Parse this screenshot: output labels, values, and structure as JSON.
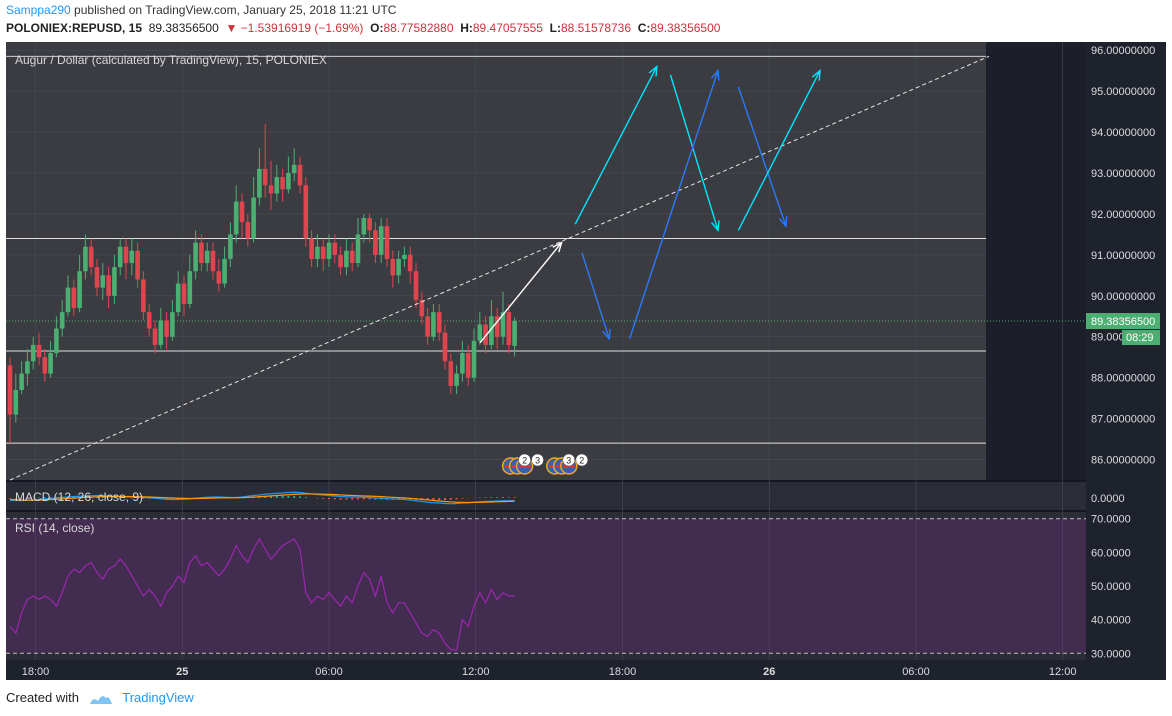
{
  "header": {
    "user": "Samppa290",
    "published_text": " published on TradingView.com, January 25, 2018 11:21 UTC",
    "symbol": "POLONIEX:REPUSD, 15",
    "last": "89.38356500",
    "change": "▼ −1.53916919 (−1.69%)",
    "o_label": "O:",
    "o_value": "88.77582880",
    "h_label": "H:",
    "h_value": "89.47057555",
    "l_label": "L:",
    "l_value": "88.51578736",
    "c_label": "C:",
    "c_value": "89.38356500"
  },
  "footer": {
    "created_with": "Created with",
    "brand": "TradingView"
  },
  "chart_data": {
    "type": "candlestick",
    "title": "Augur / Dollar (calculated by TradingView), 15, POLONIEX",
    "price_axis": {
      "ylim": [
        85.5,
        96.2
      ],
      "ticks": [
        "86.00000000",
        "87.00000000",
        "88.00000000",
        "89.00000000",
        "90.00000000",
        "91.00000000",
        "92.00000000",
        "93.00000000",
        "94.00000000",
        "95.00000000",
        "96.00000000"
      ],
      "last_price_label": "89.38356500",
      "countdown_label": "08:29"
    },
    "time_axis": {
      "ticks": [
        {
          "label": "18:00",
          "bold": false
        },
        {
          "label": "25",
          "bold": true
        },
        {
          "label": "06:00",
          "bold": false
        },
        {
          "label": "12:00",
          "bold": false
        },
        {
          "label": "18:00",
          "bold": false
        },
        {
          "label": "26",
          "bold": true
        },
        {
          "label": "06:00",
          "bold": false
        },
        {
          "label": "12:00",
          "bold": false
        }
      ]
    },
    "levels": [
      91.4,
      88.65,
      86.4
    ],
    "trendline": {
      "from": [
        0,
        85.5
      ],
      "to": [
        130,
        95.85
      ]
    },
    "projection_arrows": [
      {
        "color": "#ffffff",
        "from": [
          62,
          88.85
        ],
        "to": [
          74,
          91.3
        ]
      },
      {
        "color": "#00e5ff",
        "from": [
          76,
          91.75
        ],
        "to": [
          88,
          95.6
        ]
      },
      {
        "color": "#2979ff",
        "from": [
          77,
          91.05
        ],
        "to": [
          81,
          88.95
        ]
      },
      {
        "color": "#00e5ff",
        "from": [
          90,
          95.4
        ],
        "to": [
          97,
          91.6
        ]
      },
      {
        "color": "#2979ff",
        "from": [
          84,
          88.95
        ],
        "to": [
          97,
          95.5
        ]
      },
      {
        "color": "#2979ff",
        "from": [
          100,
          95.1
        ],
        "to": [
          107,
          91.7
        ]
      },
      {
        "color": "#00e5ff",
        "from": [
          100,
          91.6
        ],
        "to": [
          112,
          95.5
        ]
      }
    ],
    "event_markers": [
      {
        "bar": 66.5,
        "count": "2",
        "n": "3"
      },
      {
        "bar": 73,
        "count": "3",
        "n": "2"
      }
    ],
    "candles": [
      [
        88.3,
        87.1,
        88.5,
        86.4
      ],
      [
        87.1,
        87.7,
        88.1,
        86.9
      ],
      [
        87.7,
        88.1,
        88.4,
        87.6
      ],
      [
        88.1,
        88.4,
        88.7,
        87.8
      ],
      [
        88.4,
        88.8,
        89.0,
        88.2
      ],
      [
        88.8,
        88.5,
        89.1,
        88.3
      ],
      [
        88.5,
        88.1,
        88.7,
        87.9
      ],
      [
        88.1,
        88.6,
        88.9,
        88.0
      ],
      [
        88.6,
        89.2,
        89.5,
        88.5
      ],
      [
        89.2,
        89.6,
        89.9,
        89.0
      ],
      [
        89.6,
        90.2,
        90.5,
        89.5
      ],
      [
        90.2,
        89.7,
        90.4,
        89.5
      ],
      [
        89.7,
        90.6,
        91.0,
        89.6
      ],
      [
        90.6,
        91.2,
        91.5,
        90.4
      ],
      [
        91.2,
        90.7,
        91.4,
        90.5
      ],
      [
        90.7,
        90.2,
        90.9,
        90.0
      ],
      [
        90.2,
        90.5,
        90.8,
        89.9
      ],
      [
        90.5,
        90.0,
        90.7,
        89.7
      ],
      [
        90.0,
        90.7,
        91.0,
        89.8
      ],
      [
        90.7,
        91.2,
        91.4,
        90.5
      ],
      [
        91.2,
        90.8,
        91.4,
        90.4
      ],
      [
        90.8,
        91.1,
        91.4,
        90.5
      ],
      [
        91.1,
        90.4,
        91.3,
        90.2
      ],
      [
        90.4,
        89.6,
        90.6,
        89.4
      ],
      [
        89.6,
        89.2,
        89.8,
        89.0
      ],
      [
        89.2,
        88.8,
        89.4,
        88.6
      ],
      [
        88.8,
        89.4,
        89.7,
        88.7
      ],
      [
        89.4,
        89.0,
        89.6,
        88.7
      ],
      [
        89.0,
        89.6,
        89.9,
        88.9
      ],
      [
        89.6,
        90.3,
        90.6,
        89.5
      ],
      [
        90.3,
        89.8,
        90.5,
        89.5
      ],
      [
        89.8,
        90.6,
        91.0,
        89.7
      ],
      [
        90.6,
        91.3,
        91.6,
        90.4
      ],
      [
        91.3,
        90.8,
        91.5,
        90.6
      ],
      [
        90.8,
        91.1,
        91.3,
        90.6
      ],
      [
        91.1,
        90.6,
        91.3,
        90.4
      ],
      [
        90.6,
        90.3,
        90.9,
        90.1
      ],
      [
        90.3,
        90.9,
        91.2,
        90.2
      ],
      [
        90.9,
        91.5,
        91.8,
        90.7
      ],
      [
        91.5,
        92.3,
        92.7,
        91.3
      ],
      [
        92.3,
        91.8,
        92.5,
        91.4
      ],
      [
        91.8,
        91.4,
        92.0,
        91.2
      ],
      [
        91.4,
        92.4,
        92.9,
        91.3
      ],
      [
        92.4,
        93.1,
        93.6,
        92.2
      ],
      [
        93.1,
        92.7,
        94.2,
        92.4
      ],
      [
        92.7,
        92.5,
        93.3,
        92.1
      ],
      [
        92.5,
        92.9,
        93.2,
        92.3
      ],
      [
        92.9,
        92.6,
        93.1,
        92.3
      ],
      [
        92.6,
        93.0,
        93.4,
        92.5
      ],
      [
        93.0,
        93.2,
        93.6,
        92.8
      ],
      [
        93.2,
        92.7,
        93.4,
        92.5
      ],
      [
        92.7,
        91.4,
        92.9,
        91.2
      ],
      [
        91.4,
        90.9,
        91.6,
        90.7
      ],
      [
        90.9,
        91.2,
        91.5,
        90.7
      ],
      [
        91.2,
        90.9,
        91.4,
        90.6
      ],
      [
        90.9,
        91.3,
        91.5,
        90.7
      ],
      [
        91.3,
        91.0,
        91.5,
        90.8
      ],
      [
        91.0,
        90.7,
        91.2,
        90.5
      ],
      [
        90.7,
        91.1,
        91.4,
        90.5
      ],
      [
        91.1,
        90.8,
        91.3,
        90.6
      ],
      [
        90.8,
        91.5,
        91.9,
        90.7
      ],
      [
        91.5,
        91.9,
        92.0,
        91.3
      ],
      [
        91.9,
        91.6,
        92.0,
        91.3
      ],
      [
        91.6,
        91.0,
        91.8,
        90.8
      ],
      [
        91.0,
        91.7,
        91.9,
        90.8
      ],
      [
        91.7,
        90.9,
        91.9,
        90.7
      ],
      [
        90.9,
        90.5,
        91.1,
        90.2
      ],
      [
        90.5,
        90.9,
        91.1,
        90.3
      ],
      [
        90.9,
        91.0,
        91.2,
        90.7
      ],
      [
        91.0,
        90.6,
        91.2,
        90.3
      ],
      [
        90.6,
        89.9,
        90.8,
        89.7
      ],
      [
        89.9,
        89.5,
        90.1,
        89.3
      ],
      [
        89.5,
        89.0,
        89.7,
        88.8
      ],
      [
        89.0,
        89.6,
        89.8,
        88.9
      ],
      [
        89.6,
        89.1,
        89.8,
        88.9
      ],
      [
        89.1,
        88.4,
        89.3,
        88.2
      ],
      [
        88.4,
        87.8,
        88.6,
        87.6
      ],
      [
        87.8,
        88.1,
        88.3,
        87.6
      ],
      [
        88.1,
        88.6,
        88.9,
        87.9
      ],
      [
        88.6,
        88.0,
        88.8,
        87.8
      ],
      [
        88.0,
        88.9,
        89.2,
        87.9
      ],
      [
        88.9,
        89.3,
        89.6,
        88.8
      ],
      [
        89.3,
        88.8,
        89.5,
        88.6
      ],
      [
        88.8,
        89.5,
        89.9,
        88.7
      ],
      [
        89.5,
        89.0,
        89.7,
        88.7
      ],
      [
        89.0,
        89.6,
        90.1,
        88.8
      ],
      [
        89.6,
        88.8,
        89.8,
        88.6
      ],
      [
        88.7758288,
        89.383565,
        89.47057555,
        88.51578736
      ]
    ],
    "macd": {
      "label": "MACD (12, 26, close, 9)",
      "tick": "0.0000",
      "macd_line": [
        -0.45,
        -0.5,
        -0.5,
        -0.45,
        -0.4,
        -0.3,
        -0.2,
        -0.1,
        0.0,
        0.1,
        0.2,
        0.3,
        0.35,
        0.4,
        0.45,
        0.5,
        0.45,
        0.4,
        0.35,
        0.3,
        0.25,
        0.2,
        0.15,
        0.1,
        0.05,
        -0.05,
        -0.15,
        -0.25,
        -0.3,
        -0.3,
        -0.25,
        -0.15,
        -0.05,
        0.05,
        0.15,
        0.2,
        0.2,
        0.15,
        0.1,
        0.1,
        0.2,
        0.35,
        0.5,
        0.6,
        0.75,
        0.85,
        0.95,
        1.0,
        1.1,
        1.15,
        1.1,
        0.95,
        0.8,
        0.7,
        0.6,
        0.5,
        0.4,
        0.3,
        0.25,
        0.2,
        0.2,
        0.15,
        0.1,
        0.0,
        -0.05,
        -0.15,
        -0.2,
        -0.25,
        -0.3,
        -0.4,
        -0.55,
        -0.7,
        -0.85,
        -0.95,
        -1.0,
        -1.1,
        -1.15,
        -1.1,
        -1.0,
        -0.95,
        -0.85,
        -0.75,
        -0.7,
        -0.65,
        -0.6,
        -0.55,
        -0.55,
        -0.5
      ],
      "signal_line": [
        -0.3,
        -0.35,
        -0.4,
        -0.42,
        -0.42,
        -0.4,
        -0.35,
        -0.3,
        -0.25,
        -0.18,
        -0.1,
        -0.02,
        0.05,
        0.12,
        0.18,
        0.24,
        0.28,
        0.3,
        0.31,
        0.31,
        0.3,
        0.28,
        0.26,
        0.23,
        0.2,
        0.15,
        0.1,
        0.05,
        0.0,
        -0.05,
        -0.08,
        -0.1,
        -0.1,
        -0.08,
        -0.05,
        -0.02,
        0.01,
        0.03,
        0.04,
        0.05,
        0.08,
        0.12,
        0.18,
        0.25,
        0.33,
        0.42,
        0.5,
        0.58,
        0.66,
        0.73,
        0.78,
        0.81,
        0.81,
        0.79,
        0.76,
        0.72,
        0.67,
        0.61,
        0.55,
        0.5,
        0.46,
        0.41,
        0.37,
        0.32,
        0.27,
        0.2,
        0.14,
        0.08,
        0.02,
        -0.06,
        -0.16,
        -0.27,
        -0.39,
        -0.5,
        -0.6,
        -0.7,
        -0.79,
        -0.85,
        -0.88,
        -0.9,
        -0.89,
        -0.86,
        -0.83,
        -0.8,
        -0.76,
        -0.72,
        -0.69,
        -0.65
      ]
    },
    "rsi": {
      "label": "RSI (14, close)",
      "ylim": [
        28,
        72
      ],
      "ticks": [
        "30.0000",
        "40.0000",
        "50.0000",
        "60.0000",
        "70.0000"
      ],
      "bands": [
        70,
        30
      ],
      "values": [
        38,
        36,
        42,
        46,
        47,
        46,
        47,
        46,
        44,
        48,
        53,
        55,
        54,
        56,
        57,
        54,
        52,
        55,
        56,
        58,
        56,
        53,
        50,
        47,
        49,
        47,
        44,
        48,
        50,
        53,
        51,
        57,
        59,
        56,
        57,
        55,
        53,
        55,
        58,
        62,
        59,
        57,
        61,
        64,
        61,
        58,
        60,
        62,
        63,
        64,
        61,
        48,
        45,
        47,
        46,
        48,
        46,
        44,
        47,
        45,
        50,
        54,
        52,
        47,
        53,
        45,
        42,
        45,
        45,
        42,
        39,
        36,
        35,
        37,
        36,
        33,
        31,
        31,
        40,
        38,
        44,
        48,
        45,
        49,
        46,
        48,
        47,
        47
      ]
    }
  }
}
